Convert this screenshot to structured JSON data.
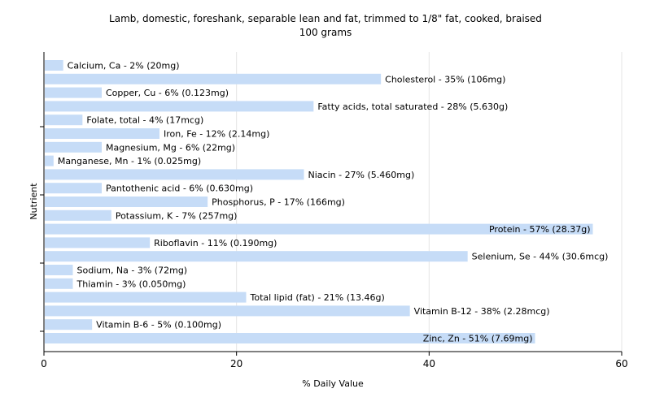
{
  "colors": {
    "bar": "#c6dcf7",
    "grid": "#e5e5e5",
    "axis": "#000000",
    "background": "#ffffff"
  },
  "chart_data": {
    "type": "bar",
    "orientation": "horizontal",
    "title": "Lamb, domestic, foreshank, separable lean and fat, trimmed to 1/8\" fat, cooked, braised",
    "subtitle": "100 grams",
    "xlabel": "% Daily Value",
    "ylabel": "Nutrient",
    "xlim": [
      0,
      60
    ],
    "xticks": [
      0,
      20,
      40,
      60
    ],
    "grid": true,
    "legend": "none",
    "categories": [
      "Calcium, Ca",
      "Cholesterol",
      "Copper, Cu",
      "Fatty acids, total saturated",
      "Folate, total",
      "Iron, Fe",
      "Magnesium, Mg",
      "Manganese, Mn",
      "Niacin",
      "Pantothenic acid",
      "Phosphorus, P",
      "Potassium, K",
      "Protein",
      "Riboflavin",
      "Selenium, Se",
      "Sodium, Na",
      "Thiamin",
      "Total lipid (fat)",
      "Vitamin B-12",
      "Vitamin B-6",
      "Zinc, Zn"
    ],
    "values": [
      2,
      35,
      6,
      28,
      4,
      12,
      6,
      1,
      27,
      6,
      17,
      7,
      57,
      11,
      44,
      3,
      3,
      21,
      38,
      5,
      51
    ],
    "labels": [
      "Calcium, Ca - 2% (20mg)",
      "Cholesterol - 35% (106mg)",
      "Copper, Cu - 6% (0.123mg)",
      "Fatty acids, total saturated - 28% (5.630g)",
      "Folate, total - 4% (17mcg)",
      "Iron, Fe - 12% (2.14mg)",
      "Magnesium, Mg - 6% (22mg)",
      "Manganese, Mn - 1% (0.025mg)",
      "Niacin - 27% (5.460mg)",
      "Pantothenic acid - 6% (0.630mg)",
      "Phosphorus, P - 17% (166mg)",
      "Potassium, K - 7% (257mg)",
      "Protein - 57% (28.37g)",
      "Riboflavin - 11% (0.190mg)",
      "Selenium, Se - 44% (30.6mcg)",
      "Sodium, Na - 3% (72mg)",
      "Thiamin - 3% (0.050mg)",
      "Total lipid (fat) - 21% (13.46g)",
      "Vitamin B-12 - 38% (2.28mcg)",
      "Vitamin B-6 - 5% (0.100mg)",
      "Zinc, Zn - 51% (7.69mg)"
    ]
  }
}
